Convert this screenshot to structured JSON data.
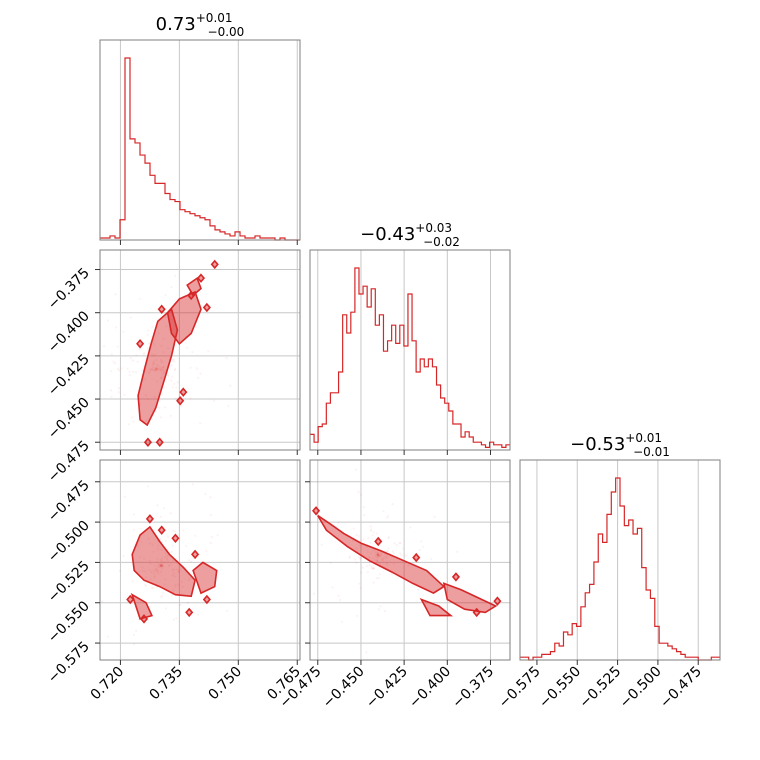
{
  "chart_data": {
    "type": "corner",
    "titles": [
      {
        "value": "0.73",
        "plus": "+0.01",
        "minus": "−0.00"
      },
      {
        "value": "−0.43",
        "plus": "+0.03",
        "minus": "−0.02"
      },
      {
        "value": "−0.53",
        "plus": "+0.01",
        "minus": "−0.01"
      }
    ],
    "params": [
      {
        "range": [
          0.7148,
          0.7657
        ],
        "ticks": [
          0.72,
          0.735,
          0.75,
          0.765
        ],
        "tick_labels": [
          "0.720",
          "0.735",
          "0.750",
          "0.765"
        ]
      },
      {
        "range": [
          -0.4795,
          -0.3637
        ],
        "ticks": [
          -0.475,
          -0.45,
          -0.425,
          -0.4,
          -0.375
        ],
        "tick_labels": [
          "−0.475",
          "−0.450",
          "−0.425",
          "−0.400",
          "−0.375"
        ]
      },
      {
        "range": [
          -0.5855,
          -0.4615
        ],
        "ticks": [
          -0.575,
          -0.55,
          -0.525,
          -0.5,
          -0.475
        ],
        "tick_labels": [
          "−0.575",
          "−0.550",
          "−0.525",
          "−0.500",
          "−0.475"
        ]
      }
    ],
    "histograms": [
      {
        "counts": [
          1,
          1,
          2,
          1,
          10,
          90,
          50,
          48,
          42,
          38,
          32,
          28,
          28,
          23,
          20,
          19,
          15,
          14,
          13,
          12,
          11,
          10,
          7,
          5,
          4,
          3,
          2,
          4,
          2,
          1,
          1,
          2,
          1,
          1,
          1,
          0,
          1,
          0,
          0,
          0
        ]
      },
      {
        "counts": [
          6,
          3,
          9,
          10,
          18,
          22,
          22,
          30,
          52,
          45,
          53,
          70,
          60,
          63,
          55,
          62,
          48,
          52,
          38,
          42,
          48,
          41,
          48,
          40,
          60,
          42,
          30,
          35,
          32,
          35,
          32,
          25,
          20,
          18,
          15,
          10,
          10,
          5,
          7,
          5,
          3,
          3,
          2,
          1,
          3,
          2,
          2,
          1,
          2
        ]
      },
      {
        "counts": [
          1,
          1,
          0,
          1,
          1,
          2,
          2,
          3,
          6,
          5,
          10,
          9,
          13,
          12,
          19,
          24,
          27,
          35,
          45,
          42,
          52,
          60,
          65,
          55,
          48,
          50,
          45,
          47,
          33,
          25,
          22,
          12,
          6,
          6,
          5,
          4,
          3,
          2,
          1,
          1,
          1,
          0,
          0,
          0,
          1,
          1
        ]
      }
    ],
    "panels_2d": [
      {
        "x_param": 0,
        "y_param": 1,
        "contours": [
          [
            [
              0.7245,
              -0.448
            ],
            [
              0.7262,
              -0.432
            ],
            [
              0.7278,
              -0.418
            ],
            [
              0.7295,
              -0.405
            ],
            [
              0.733,
              -0.398
            ],
            [
              0.7345,
              -0.41
            ],
            [
              0.733,
              -0.425
            ],
            [
              0.731,
              -0.44
            ],
            [
              0.729,
              -0.455
            ],
            [
              0.7268,
              -0.465
            ],
            [
              0.725,
              -0.462
            ]
          ],
          [
            [
              0.732,
              -0.4
            ],
            [
              0.735,
              -0.392
            ],
            [
              0.739,
              -0.388
            ],
            [
              0.7405,
              -0.398
            ],
            [
              0.738,
              -0.412
            ],
            [
              0.735,
              -0.418
            ],
            [
              0.733,
              -0.412
            ]
          ],
          [
            [
              0.737,
              -0.384
            ],
            [
              0.7395,
              -0.38
            ],
            [
              0.7405,
              -0.386
            ],
            [
              0.7385,
              -0.39
            ]
          ]
        ],
        "islands": [
          [
            0.7405,
            -0.38
          ],
          [
            0.738,
            -0.39
          ],
          [
            0.742,
            -0.397
          ],
          [
            0.744,
            -0.372
          ],
          [
            0.727,
            -0.475
          ],
          [
            0.73,
            -0.475
          ],
          [
            0.736,
            -0.446
          ],
          [
            0.7352,
            -0.451
          ],
          [
            0.7305,
            -0.398
          ],
          [
            0.725,
            -0.418
          ]
        ]
      },
      {
        "x_param": 0,
        "y_param": 2,
        "contours": [
          [
            [
              0.723,
              -0.52
            ],
            [
              0.725,
              -0.508
            ],
            [
              0.7275,
              -0.503
            ],
            [
              0.73,
              -0.512
            ],
            [
              0.7325,
              -0.52
            ],
            [
              0.736,
              -0.528
            ],
            [
              0.739,
              -0.536
            ],
            [
              0.738,
              -0.546
            ],
            [
              0.734,
              -0.545
            ],
            [
              0.73,
              -0.54
            ],
            [
              0.726,
              -0.536
            ],
            [
              0.7235,
              -0.53
            ]
          ],
          [
            [
              0.7385,
              -0.53
            ],
            [
              0.741,
              -0.525
            ],
            [
              0.7445,
              -0.53
            ],
            [
              0.744,
              -0.54
            ],
            [
              0.7405,
              -0.544
            ]
          ],
          [
            [
              0.723,
              -0.545
            ],
            [
              0.7265,
              -0.55
            ],
            [
              0.728,
              -0.558
            ],
            [
              0.725,
              -0.56
            ]
          ]
        ],
        "islands": [
          [
            0.7275,
            -0.498
          ],
          [
            0.7305,
            -0.505
          ],
          [
            0.734,
            -0.51
          ],
          [
            0.742,
            -0.548
          ],
          [
            0.7375,
            -0.556
          ],
          [
            0.726,
            -0.56
          ],
          [
            0.7225,
            -0.548
          ],
          [
            0.739,
            -0.52
          ]
        ]
      },
      {
        "x_param": 1,
        "y_param": 2,
        "contours": [
          [
            [
              -0.475,
              -0.496
            ],
            [
              -0.468,
              -0.501
            ],
            [
              -0.46,
              -0.507
            ],
            [
              -0.45,
              -0.513
            ],
            [
              -0.438,
              -0.518
            ],
            [
              -0.425,
              -0.524
            ],
            [
              -0.412,
              -0.53
            ],
            [
              -0.402,
              -0.54
            ],
            [
              -0.408,
              -0.544
            ],
            [
              -0.42,
              -0.538
            ],
            [
              -0.432,
              -0.531
            ],
            [
              -0.445,
              -0.524
            ],
            [
              -0.458,
              -0.515
            ],
            [
              -0.47,
              -0.505
            ]
          ],
          [
            [
              -0.402,
              -0.538
            ],
            [
              -0.392,
              -0.542
            ],
            [
              -0.38,
              -0.548
            ],
            [
              -0.372,
              -0.552
            ],
            [
              -0.378,
              -0.556
            ],
            [
              -0.39,
              -0.554
            ],
            [
              -0.4,
              -0.548
            ]
          ],
          [
            [
              -0.415,
              -0.548
            ],
            [
              -0.405,
              -0.552
            ],
            [
              -0.398,
              -0.558
            ],
            [
              -0.41,
              -0.558
            ]
          ]
        ],
        "islands": [
          [
            -0.371,
            -0.549
          ],
          [
            -0.383,
            -0.556
          ],
          [
            -0.476,
            -0.493
          ],
          [
            -0.395,
            -0.534
          ],
          [
            -0.418,
            -0.522
          ],
          [
            -0.44,
            -0.512
          ]
        ]
      }
    ],
    "grid": true
  }
}
